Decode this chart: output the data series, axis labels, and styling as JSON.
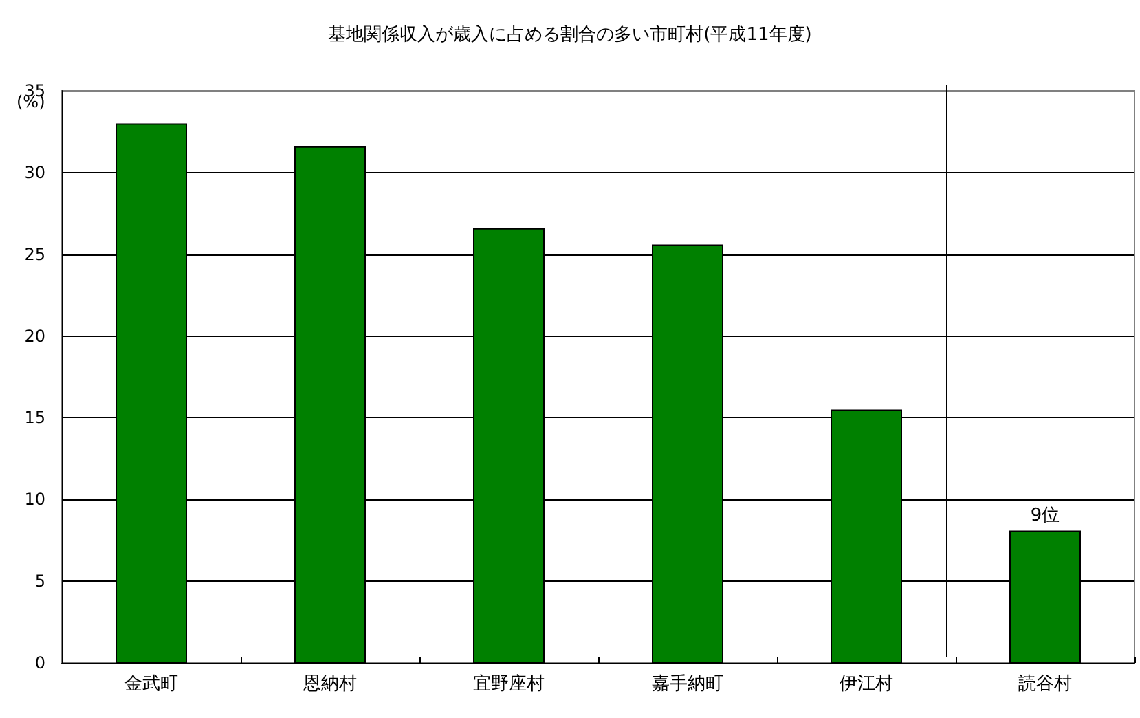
{
  "chart_data": {
    "type": "bar",
    "title": "基地関係収入が歳入に占める割合の多い市町村(平成11年度)",
    "ylabel": "(%)",
    "categories": [
      "金武町",
      "恩納村",
      "宜野座村",
      "嘉手納町",
      "伊江村",
      "読谷村"
    ],
    "values": [
      33.0,
      31.6,
      26.6,
      25.6,
      15.5,
      8.1
    ],
    "color": "#008000",
    "ylim": [
      0,
      35
    ],
    "yticks": [
      0,
      5,
      10,
      15,
      20,
      25,
      30,
      35
    ],
    "grid": "y",
    "annotations": [
      {
        "text": "9位",
        "x": "読谷村",
        "y": 8.1
      }
    ]
  }
}
